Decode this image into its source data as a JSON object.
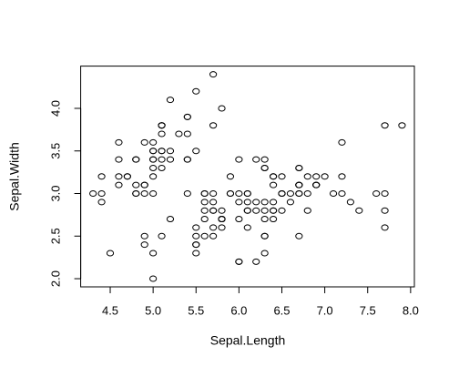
{
  "chart_data": {
    "type": "scatter",
    "x_label": "Sepal.Length",
    "y_label": "Sepal.Width",
    "color": "#000000",
    "xlim": [
      4.156,
      8.044
    ],
    "ylim": [
      1.904,
      4.496
    ],
    "xticks": [
      4.5,
      {
        "value": 5.0,
        "label": "5.0"
      },
      5.5,
      {
        "value": 6.0,
        "label": "6.0"
      },
      6.5,
      {
        "value": 7.0,
        "label": "7.0"
      },
      7.5,
      {
        "value": 8.0,
        "label": "8.0"
      }
    ],
    "yticks": [
      {
        "value": 2.0,
        "label": "2.0"
      },
      2.5,
      {
        "value": 3.0,
        "label": "3.0"
      },
      3.5,
      {
        "value": 4.0,
        "label": "4.0"
      }
    ],
    "x": [
      5.1,
      4.9,
      4.7,
      4.6,
      5.0,
      5.4,
      4.6,
      5.0,
      4.4,
      4.9,
      5.4,
      4.8,
      4.8,
      4.3,
      5.8,
      5.7,
      5.4,
      5.1,
      5.7,
      5.1,
      5.4,
      5.1,
      4.6,
      5.1,
      4.8,
      5.0,
      5.0,
      5.2,
      5.2,
      4.7,
      4.8,
      5.4,
      5.2,
      5.5,
      4.9,
      5.0,
      5.5,
      4.9,
      4.4,
      5.1,
      5.0,
      4.5,
      4.4,
      5.0,
      5.1,
      4.8,
      5.1,
      4.6,
      5.3,
      5.0,
      7.0,
      6.4,
      6.9,
      5.5,
      6.5,
      5.7,
      6.3,
      4.9,
      6.6,
      5.2,
      5.0,
      5.9,
      6.0,
      6.1,
      5.6,
      6.7,
      5.6,
      5.8,
      6.2,
      5.6,
      5.9,
      6.1,
      6.3,
      6.1,
      6.4,
      6.6,
      6.8,
      6.7,
      6.0,
      5.7,
      5.5,
      5.5,
      5.8,
      6.0,
      5.4,
      6.0,
      6.7,
      6.3,
      5.6,
      5.5,
      5.5,
      6.1,
      5.8,
      5.0,
      5.6,
      5.7,
      5.7,
      6.2,
      5.1,
      5.7,
      6.3,
      5.8,
      7.1,
      6.3,
      6.5,
      7.6,
      4.9,
      7.3,
      6.7,
      7.2,
      6.5,
      6.4,
      6.8,
      5.7,
      5.8,
      6.4,
      6.5,
      7.7,
      7.7,
      6.0,
      6.9,
      5.6,
      7.7,
      6.3,
      6.7,
      7.2,
      6.2,
      6.1,
      6.4,
      7.2,
      7.4,
      7.9,
      6.4,
      6.3,
      6.1,
      7.7,
      6.3,
      6.4,
      6.0,
      6.9,
      6.7,
      6.9,
      5.8,
      6.8,
      6.7,
      6.7,
      6.3,
      6.5,
      6.2,
      5.9
    ],
    "values": [
      3.5,
      3.0,
      3.2,
      3.1,
      3.6,
      3.9,
      3.4,
      3.4,
      2.9,
      3.1,
      3.7,
      3.4,
      3.0,
      3.0,
      4.0,
      4.4,
      3.9,
      3.5,
      3.8,
      3.8,
      3.4,
      3.7,
      3.6,
      3.3,
      3.4,
      3.0,
      3.4,
      3.5,
      3.4,
      3.2,
      3.1,
      3.4,
      4.1,
      4.2,
      3.1,
      3.2,
      3.5,
      3.6,
      3.0,
      3.4,
      3.5,
      2.3,
      3.2,
      3.5,
      3.8,
      3.0,
      3.8,
      3.2,
      3.7,
      3.3,
      3.2,
      3.2,
      3.1,
      2.3,
      2.8,
      2.8,
      3.3,
      2.4,
      2.9,
      2.7,
      2.0,
      3.0,
      2.2,
      2.9,
      2.9,
      3.1,
      3.0,
      2.7,
      2.2,
      2.5,
      3.2,
      2.8,
      2.5,
      2.8,
      2.9,
      3.0,
      2.8,
      3.0,
      2.9,
      2.6,
      2.4,
      2.4,
      2.7,
      2.7,
      3.0,
      3.4,
      3.1,
      2.3,
      3.0,
      2.5,
      2.6,
      3.0,
      2.6,
      2.3,
      2.7,
      3.0,
      2.9,
      2.9,
      2.5,
      2.8,
      3.3,
      2.7,
      3.0,
      2.9,
      3.0,
      3.0,
      2.5,
      2.9,
      2.5,
      3.6,
      3.2,
      2.7,
      3.0,
      2.5,
      2.8,
      3.2,
      3.0,
      3.8,
      2.6,
      2.2,
      3.2,
      2.8,
      2.8,
      2.7,
      3.3,
      3.2,
      2.8,
      3.0,
      2.8,
      3.0,
      2.8,
      3.8,
      2.8,
      2.8,
      2.6,
      3.0,
      3.4,
      3.1,
      3.0,
      3.1,
      3.1,
      3.1,
      2.7,
      3.2,
      3.3,
      3.0,
      2.5,
      3.0,
      3.4,
      3.0
    ]
  }
}
